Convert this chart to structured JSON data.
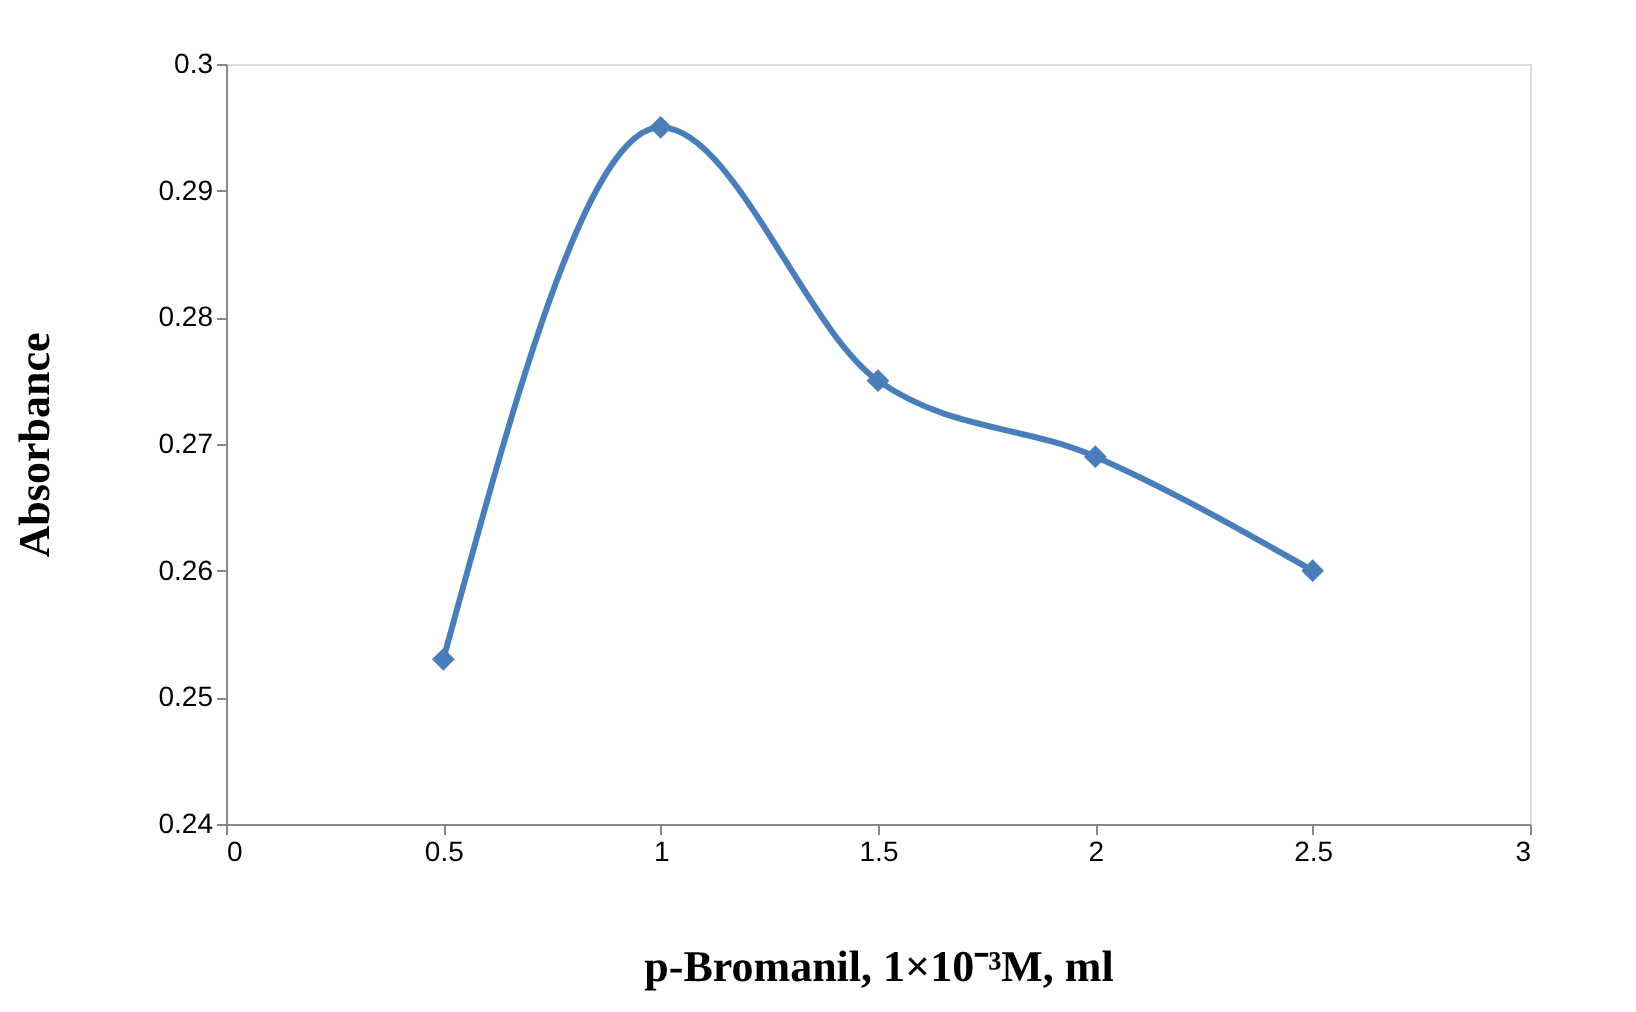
{
  "chart_data": {
    "type": "line",
    "xlabel": "p-Bromanil, 1×10⁻³M, ml",
    "ylabel": "Absorbance",
    "x": [
      0.5,
      1,
      1.5,
      2,
      2.5
    ],
    "series": [
      {
        "color": "#4a7ebb",
        "values": [
          0.253,
          0.295,
          0.275,
          0.269,
          0.26
        ]
      }
    ],
    "xlim": [
      0,
      3
    ],
    "xticks": [
      0,
      0.5,
      1,
      1.5,
      2,
      2.5,
      3
    ],
    "ylim": [
      0.24,
      0.3
    ],
    "yticks": [
      0.24,
      0.25,
      0.26,
      0.27,
      0.28,
      0.29,
      0.3
    ],
    "grid": false,
    "legend": false,
    "marker": "diamond",
    "line_style": "solid"
  }
}
